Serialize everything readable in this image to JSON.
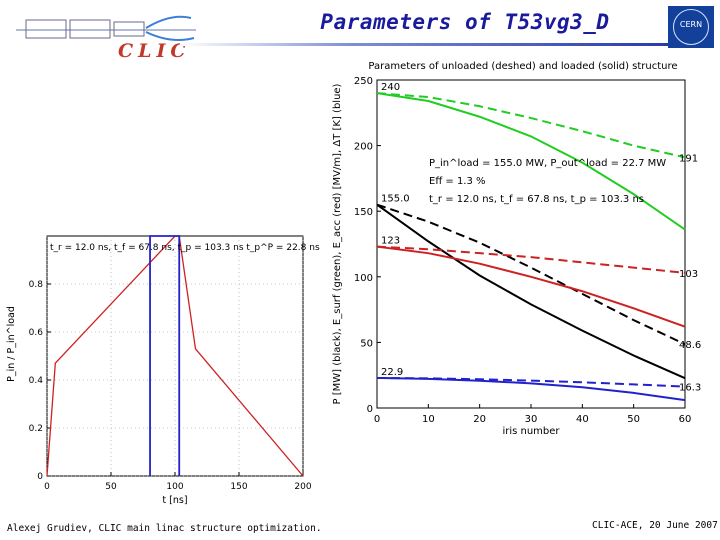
{
  "header": {
    "title": "Parameters of T53vg3_D",
    "clic_logo_text": "CLIC",
    "cern_logo_text": "CERN",
    "brand_color": "#1a1a9c",
    "logo_color": "#c0392b"
  },
  "footer": {
    "left": "Alexej Grudiev, CLIC main linac structure optimization.",
    "right": "CLIC-ACE, 20 June 2007"
  },
  "chart_data": [
    {
      "id": "pulse-shape",
      "type": "line",
      "title": "",
      "annotation": "t_r = 12.0 ns, t_f = 67.8 ns, t_p = 103.3 ns t_p^P = 22.8 ns",
      "xlabel": "t [ns]",
      "ylabel": "P_in / P_in^load",
      "xlim": [
        0,
        200
      ],
      "ylim": [
        0,
        1
      ],
      "xticks": [
        0,
        50,
        100,
        150,
        200
      ],
      "yticks": [
        0,
        0.2,
        0.4,
        0.6,
        0.8
      ],
      "grid": "dotted",
      "series": [
        {
          "color": "#cc2222",
          "x": [
            0,
            6.5,
            100,
            103.3,
            116,
            200
          ],
          "y": [
            0,
            0.47,
            1,
            1,
            0.53,
            0
          ]
        },
        {
          "color": "#2222cc",
          "x": [
            80.5,
            80.5,
            103.3,
            103.3
          ],
          "y": [
            0,
            1,
            1,
            0
          ]
        }
      ]
    },
    {
      "id": "structure-parameters",
      "type": "line",
      "title": "Parameters of unloaded (deshed) and loaded (solid) structure",
      "xlabel": "iris number",
      "ylabel": "P [MW] (black), E_surf (green), E_acc (red) [MV/m], ΔT [K] (blue)",
      "xlim": [
        0,
        60
      ],
      "ylim": [
        0,
        250
      ],
      "xticks": [
        0,
        10,
        20,
        30,
        40,
        50,
        60
      ],
      "yticks": [
        0,
        50,
        100,
        150,
        200,
        250
      ],
      "grid": "off",
      "annotations": [
        "P_in^load = 155.0 MW, P_out^load = 22.7 MW",
        "Eff = 1.3 %",
        "t_r = 12.0 ns, t_f = 67.8 ns, t_p = 103.3 ns"
      ],
      "value_labels": [
        {
          "text": "240",
          "x": 0,
          "y": 240
        },
        {
          "text": "155.0",
          "x": 0,
          "y": 155
        },
        {
          "text": "123",
          "x": 0,
          "y": 123
        },
        {
          "text": "22.9",
          "x": 0,
          "y": 22.9
        },
        {
          "text": "191",
          "x": 60,
          "y": 191
        },
        {
          "text": "103",
          "x": 60,
          "y": 103
        },
        {
          "text": "48.6",
          "x": 60,
          "y": 48.6
        },
        {
          "text": "16.3",
          "x": 60,
          "y": 16.3
        }
      ],
      "series": [
        {
          "color": "#22cc22",
          "dash": true,
          "x": [
            0,
            10,
            20,
            30,
            40,
            50,
            60
          ],
          "y": [
            240,
            237,
            230,
            221,
            211,
            200,
            191
          ]
        },
        {
          "color": "#22cc22",
          "dash": false,
          "x": [
            0,
            10,
            20,
            30,
            40,
            50,
            60
          ],
          "y": [
            240,
            234,
            222,
            207,
            187,
            163,
            136
          ]
        },
        {
          "color": "#000000",
          "dash": true,
          "x": [
            0,
            10,
            20,
            30,
            40,
            50,
            60
          ],
          "y": [
            155,
            142,
            126,
            107,
            87,
            67,
            48.6
          ]
        },
        {
          "color": "#000000",
          "dash": false,
          "x": [
            0,
            10,
            20,
            30,
            40,
            50,
            60
          ],
          "y": [
            155,
            127,
            101,
            79,
            59,
            40,
            22.7
          ]
        },
        {
          "color": "#cc2222",
          "dash": true,
          "x": [
            0,
            10,
            20,
            30,
            40,
            50,
            60
          ],
          "y": [
            123,
            121,
            118,
            115,
            111,
            107,
            103
          ]
        },
        {
          "color": "#cc2222",
          "dash": false,
          "x": [
            0,
            10,
            20,
            30,
            40,
            50,
            60
          ],
          "y": [
            123,
            118,
            110,
            100,
            89,
            76,
            62
          ]
        },
        {
          "color": "#2222cc",
          "dash": true,
          "x": [
            0,
            10,
            20,
            30,
            40,
            50,
            60
          ],
          "y": [
            22.9,
            22.6,
            21.9,
            20.9,
            19.6,
            18.0,
            16.3
          ]
        },
        {
          "color": "#2222cc",
          "dash": false,
          "x": [
            0,
            10,
            20,
            30,
            40,
            50,
            60
          ],
          "y": [
            22.9,
            22.2,
            20.8,
            18.8,
            15.8,
            11.5,
            6
          ]
        }
      ]
    }
  ]
}
